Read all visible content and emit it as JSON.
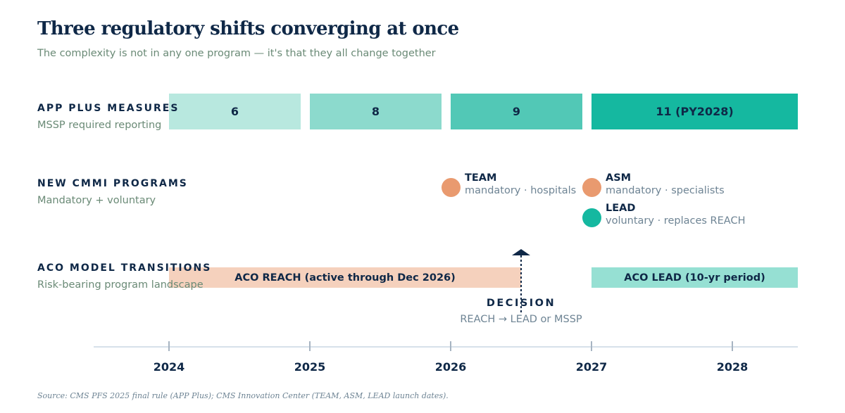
{
  "header": {
    "title": "Three regulatory shifts converging at once",
    "subtitle": "The complexity is not in any one program — it's that they all change together"
  },
  "rows": {
    "measures": {
      "label": "APP PLUS MEASURES",
      "sub": "MSSP required reporting"
    },
    "cmmi": {
      "label": "NEW CMMI PROGRAMS",
      "sub": "Mandatory + voluntary"
    },
    "aco": {
      "label": "ACO MODEL TRANSITIONS",
      "sub": "Risk-bearing program landscape"
    }
  },
  "measures": [
    {
      "year": 2024,
      "label": "6",
      "color": "#b8e8df"
    },
    {
      "year": 2025,
      "label": "8",
      "color": "#8cdacd"
    },
    {
      "year": 2026,
      "label": "9",
      "color": "#52c8b6"
    },
    {
      "year": 2027,
      "label": "11 (PY2028)",
      "color": "#15b8a0"
    }
  ],
  "programs": [
    {
      "name": "TEAM",
      "desc": "mandatory · hospitals",
      "launch": 2026,
      "color": "#e99a6f"
    },
    {
      "name": "ASM",
      "desc": "mandatory · specialists",
      "launch": 2027,
      "color": "#e99a6f"
    },
    {
      "name": "LEAD",
      "desc": "voluntary · replaces REACH",
      "launch": 2027,
      "color": "#15b8a0"
    }
  ],
  "transitions": [
    {
      "label": "ACO REACH (active through Dec 2026)",
      "start": 2024,
      "end": 2026.5,
      "color": "#f5d1bd"
    },
    {
      "label": "ACO LEAD (10-yr period)",
      "start": 2027,
      "end": 2028.5,
      "color": "#96e0d3"
    }
  ],
  "decision": {
    "label": "DECISION",
    "sub": "REACH → LEAD or MSSP",
    "at": 2026.5
  },
  "axis": {
    "years": [
      "2024",
      "2025",
      "2026",
      "2027",
      "2028"
    ]
  },
  "source": "Source: CMS PFS 2025 final rule (APP Plus); CMS Innovation Center (TEAM, ASM, LEAD launch dates)."
}
